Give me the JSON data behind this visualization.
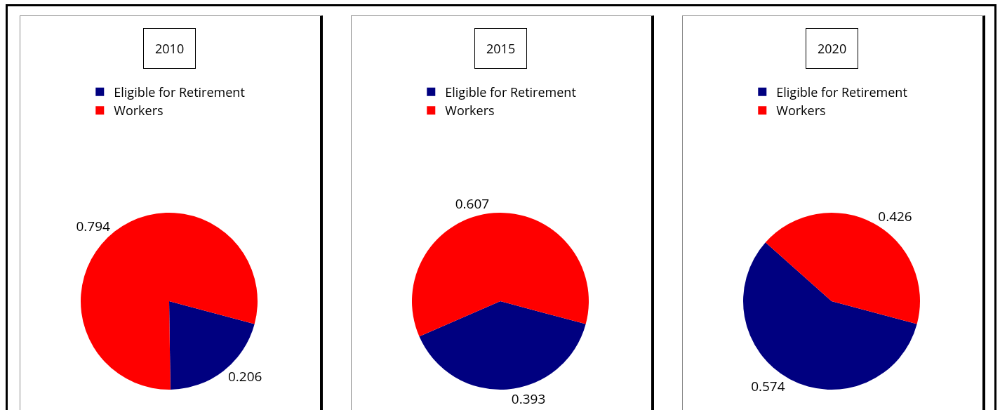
{
  "chart_data": [
    {
      "type": "pie",
      "title": "2010",
      "categories": [
        "Eligible for Retirement",
        "Workers"
      ],
      "values": [
        0.206,
        0.794
      ],
      "colors": [
        "#000080",
        "#ff0000"
      ],
      "data_labels": true,
      "legend": "top left"
    },
    {
      "type": "pie",
      "title": "2015",
      "categories": [
        "Eligible for Retirement",
        "Workers"
      ],
      "values": [
        0.393,
        0.607
      ],
      "colors": [
        "#000080",
        "#ff0000"
      ],
      "data_labels": true,
      "legend": "top left"
    },
    {
      "type": "pie",
      "title": "2020",
      "categories": [
        "Eligible for Retirement",
        "Workers"
      ],
      "values": [
        0.574,
        0.426
      ],
      "colors": [
        "#000080",
        "#ff0000"
      ],
      "data_labels": true,
      "legend": "top left"
    }
  ]
}
